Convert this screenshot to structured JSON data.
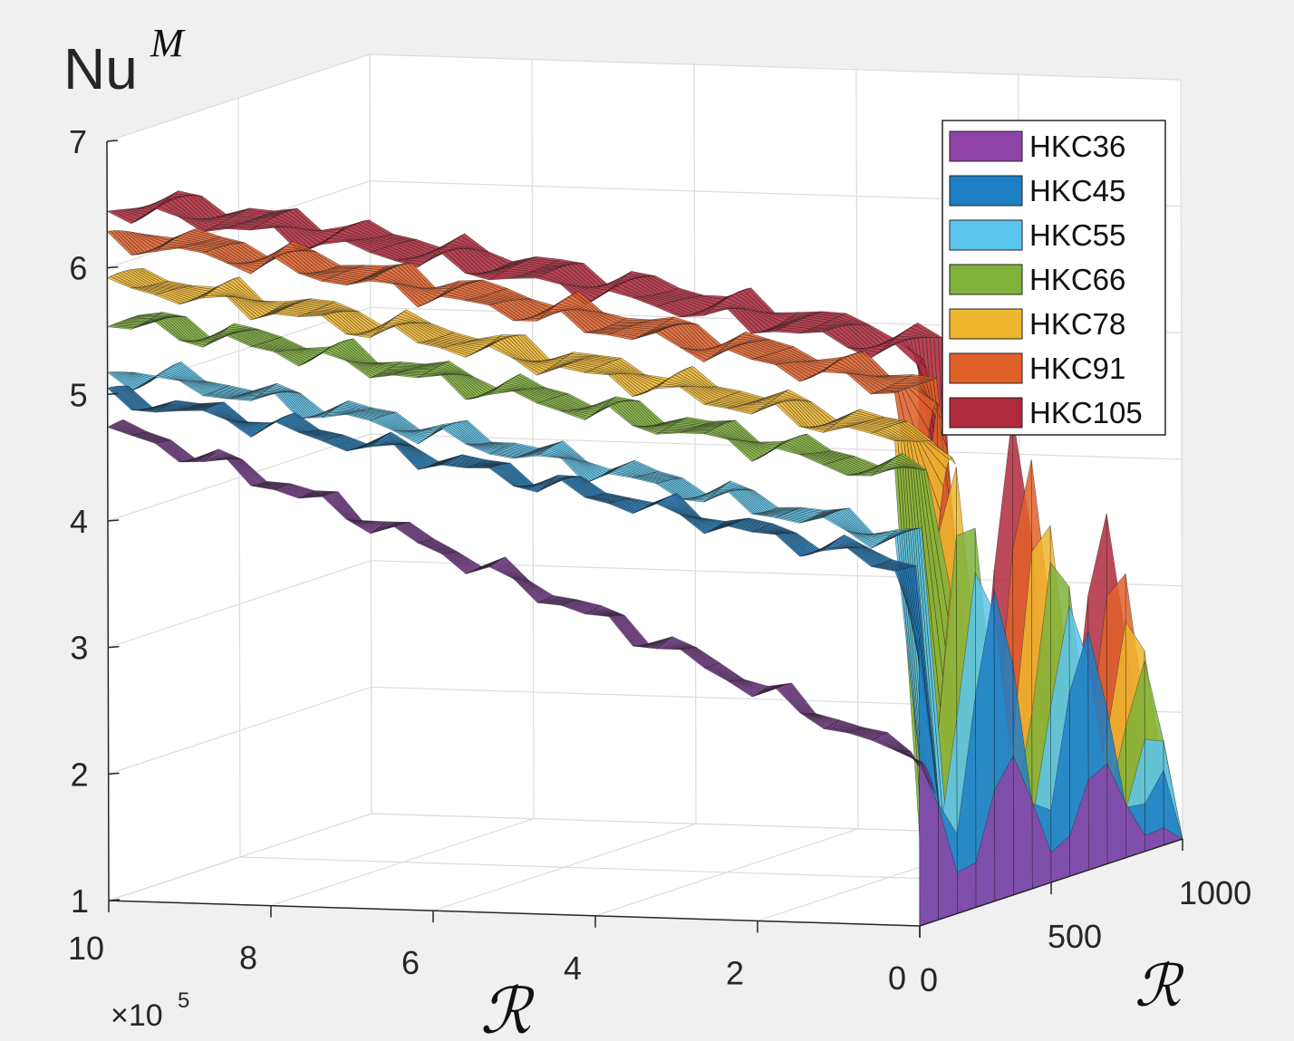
{
  "chart_data": {
    "type": "surface3d",
    "title": "",
    "zlabel": "Nu",
    "zlabel_sup": "M",
    "xlabel": "ℛ",
    "ylabel": "ℛ",
    "x_ticks": [
      "10",
      "8",
      "6",
      "4",
      "2",
      "0"
    ],
    "x_multiplier_base": "×10",
    "x_multiplier_exp": "5",
    "y_ticks": [
      "0",
      "500",
      "1000"
    ],
    "z_ticks": [
      "1",
      "2",
      "3",
      "4",
      "5",
      "6",
      "7"
    ],
    "xlim": [
      0,
      1000000
    ],
    "ylim": [
      0,
      1000
    ],
    "zlim": [
      1,
      7
    ],
    "grid": true,
    "legend_position": "top-right",
    "series": [
      {
        "name": "HKC36",
        "color": "#8e44a6",
        "start": 4.7,
        "plateau": 2.3
      },
      {
        "name": "HKC45",
        "color": "#1f7fc4",
        "start": 4.95,
        "plateau": 3.8
      },
      {
        "name": "HKC55",
        "color": "#5cc6ee",
        "start": 5.15,
        "plateau": 4.0
      },
      {
        "name": "HKC66",
        "color": "#7fb33a",
        "start": 5.55,
        "plateau": 4.5
      },
      {
        "name": "HKC78",
        "color": "#efb62f",
        "start": 5.85,
        "plateau": 4.8
      },
      {
        "name": "HKC91",
        "color": "#e0602a",
        "start": 6.2,
        "plateau": 5.2
      },
      {
        "name": "HKC105",
        "color": "#b02a3c",
        "start": 6.45,
        "plateau": 5.5
      }
    ]
  }
}
